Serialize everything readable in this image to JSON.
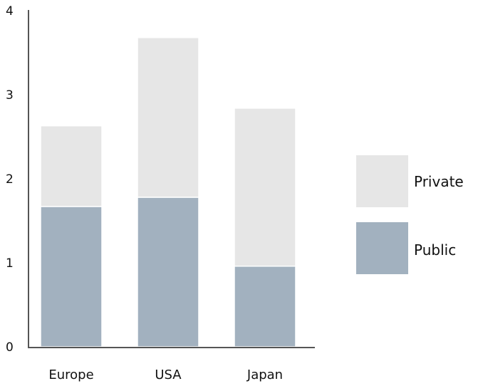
{
  "chart_data": {
    "type": "bar",
    "stacked": true,
    "categories": [
      "Europe",
      "USA",
      "Japan"
    ],
    "series": [
      {
        "name": "Public",
        "values": [
          1.67,
          1.78,
          0.96
        ],
        "color": "#a2b1bf"
      },
      {
        "name": "Private",
        "values": [
          0.96,
          1.9,
          1.88
        ],
        "color": "#e6e6e6"
      }
    ],
    "legend": {
      "placement": "right",
      "order": [
        "Private",
        "Public"
      ]
    },
    "ylim": [
      0,
      4
    ],
    "yticks": [
      "0",
      "1",
      "2",
      "3",
      "4"
    ],
    "grid": false,
    "title": "",
    "xlabel": "",
    "ylabel": ""
  }
}
